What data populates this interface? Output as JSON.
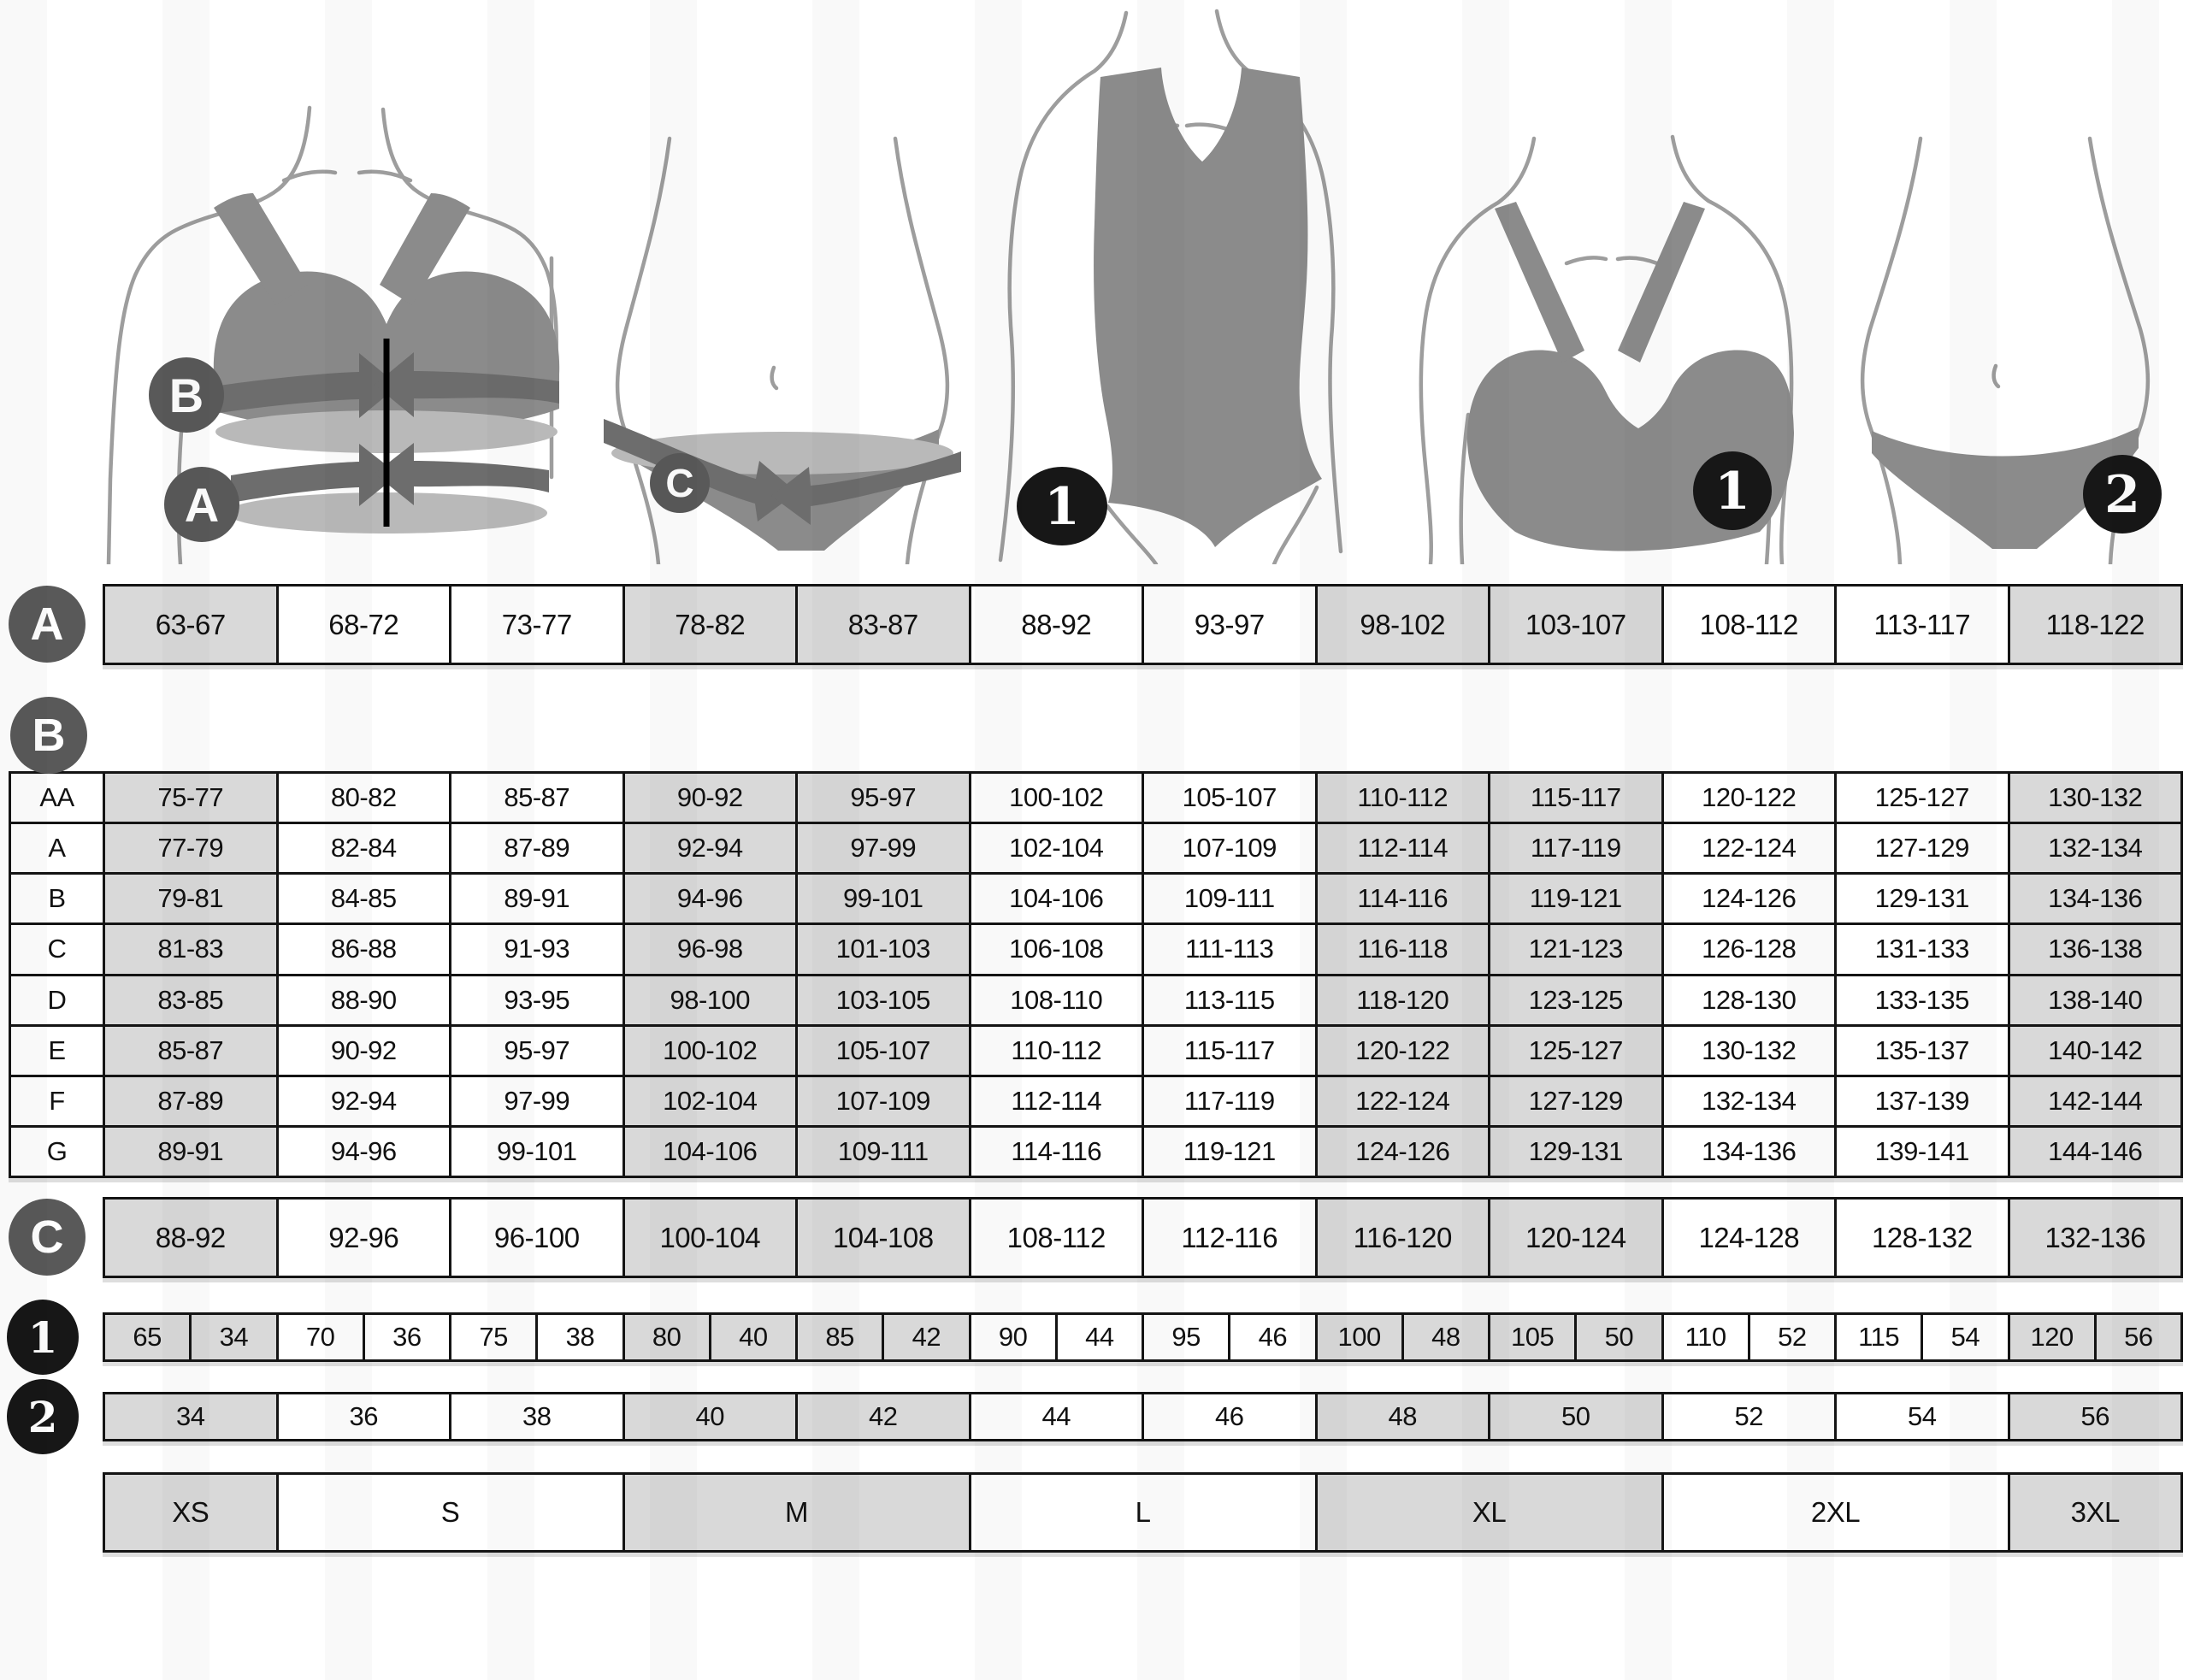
{
  "palette": {
    "cell_shaded": "#d9d9d9",
    "cell_plain": "#ffffff",
    "grid_border": "#141414",
    "badge_gray": "#595959",
    "badge_black": "#171717",
    "garment_gray": "#8b8b8b",
    "band_dark": "#6d6d6d",
    "band_light": "#b9b9b9",
    "body_outline": "#9d9d9d"
  },
  "figures": {
    "bra_measured": {
      "badges": [
        "B",
        "A"
      ]
    },
    "brief_measured": {
      "badges": [
        "C"
      ]
    },
    "swimsuit": {
      "badges": [
        "1"
      ]
    },
    "bra": {
      "badges": [
        "1"
      ]
    },
    "brief": {
      "badges": [
        "2"
      ]
    }
  },
  "chart_data": {
    "type": "table",
    "tables": {
      "underbust": {
        "badge": "A",
        "values": [
          "63-67",
          "68-72",
          "73-77",
          "78-82",
          "83-87",
          "88-92",
          "93-97",
          "98-102",
          "103-107",
          "108-112",
          "113-117",
          "118-122"
        ]
      },
      "bust": {
        "badge": "B",
        "cup_rows": [
          {
            "cup": "AA",
            "values": [
              "75-77",
              "80-82",
              "85-87",
              "90-92",
              "95-97",
              "100-102",
              "105-107",
              "110-112",
              "115-117",
              "120-122",
              "125-127",
              "130-132"
            ]
          },
          {
            "cup": "A",
            "values": [
              "77-79",
              "82-84",
              "87-89",
              "92-94",
              "97-99",
              "102-104",
              "107-109",
              "112-114",
              "117-119",
              "122-124",
              "127-129",
              "132-134"
            ]
          },
          {
            "cup": "B",
            "values": [
              "79-81",
              "84-85",
              "89-91",
              "94-96",
              "99-101",
              "104-106",
              "109-111",
              "114-116",
              "119-121",
              "124-126",
              "129-131",
              "134-136"
            ]
          },
          {
            "cup": "C",
            "values": [
              "81-83",
              "86-88",
              "91-93",
              "96-98",
              "101-103",
              "106-108",
              "111-113",
              "116-118",
              "121-123",
              "126-128",
              "131-133",
              "136-138"
            ]
          },
          {
            "cup": "D",
            "values": [
              "83-85",
              "88-90",
              "93-95",
              "98-100",
              "103-105",
              "108-110",
              "113-115",
              "118-120",
              "123-125",
              "128-130",
              "133-135",
              "138-140"
            ]
          },
          {
            "cup": "E",
            "values": [
              "85-87",
              "90-92",
              "95-97",
              "100-102",
              "105-107",
              "110-112",
              "115-117",
              "120-122",
              "125-127",
              "130-132",
              "135-137",
              "140-142"
            ]
          },
          {
            "cup": "F",
            "values": [
              "87-89",
              "92-94",
              "97-99",
              "102-104",
              "107-109",
              "112-114",
              "117-119",
              "122-124",
              "127-129",
              "132-134",
              "137-139",
              "142-144"
            ]
          },
          {
            "cup": "G",
            "values": [
              "89-91",
              "94-96",
              "99-101",
              "104-106",
              "109-111",
              "114-116",
              "119-121",
              "124-126",
              "129-131",
              "134-136",
              "139-141",
              "144-146"
            ]
          }
        ]
      },
      "hips": {
        "badge": "C",
        "values": [
          "88-92",
          "92-96",
          "96-100",
          "100-104",
          "104-108",
          "108-112",
          "112-116",
          "116-120",
          "120-124",
          "124-128",
          "128-132",
          "132-136"
        ]
      },
      "bra_size": {
        "badge": "1",
        "values": [
          "65",
          "34",
          "70",
          "36",
          "75",
          "38",
          "80",
          "40",
          "85",
          "42",
          "90",
          "44",
          "95",
          "46",
          "100",
          "48",
          "105",
          "50",
          "110",
          "52",
          "115",
          "54",
          "120",
          "56"
        ]
      },
      "brief_size": {
        "badge": "2",
        "values": [
          "34",
          "36",
          "38",
          "40",
          "42",
          "44",
          "46",
          "48",
          "50",
          "52",
          "54",
          "56"
        ]
      },
      "intl_size": {
        "values": [
          "XS",
          "S",
          "M",
          "L",
          "XL",
          "2XL",
          "3XL"
        ],
        "spans": [
          1,
          2,
          2,
          2,
          2,
          2,
          1
        ]
      }
    }
  }
}
